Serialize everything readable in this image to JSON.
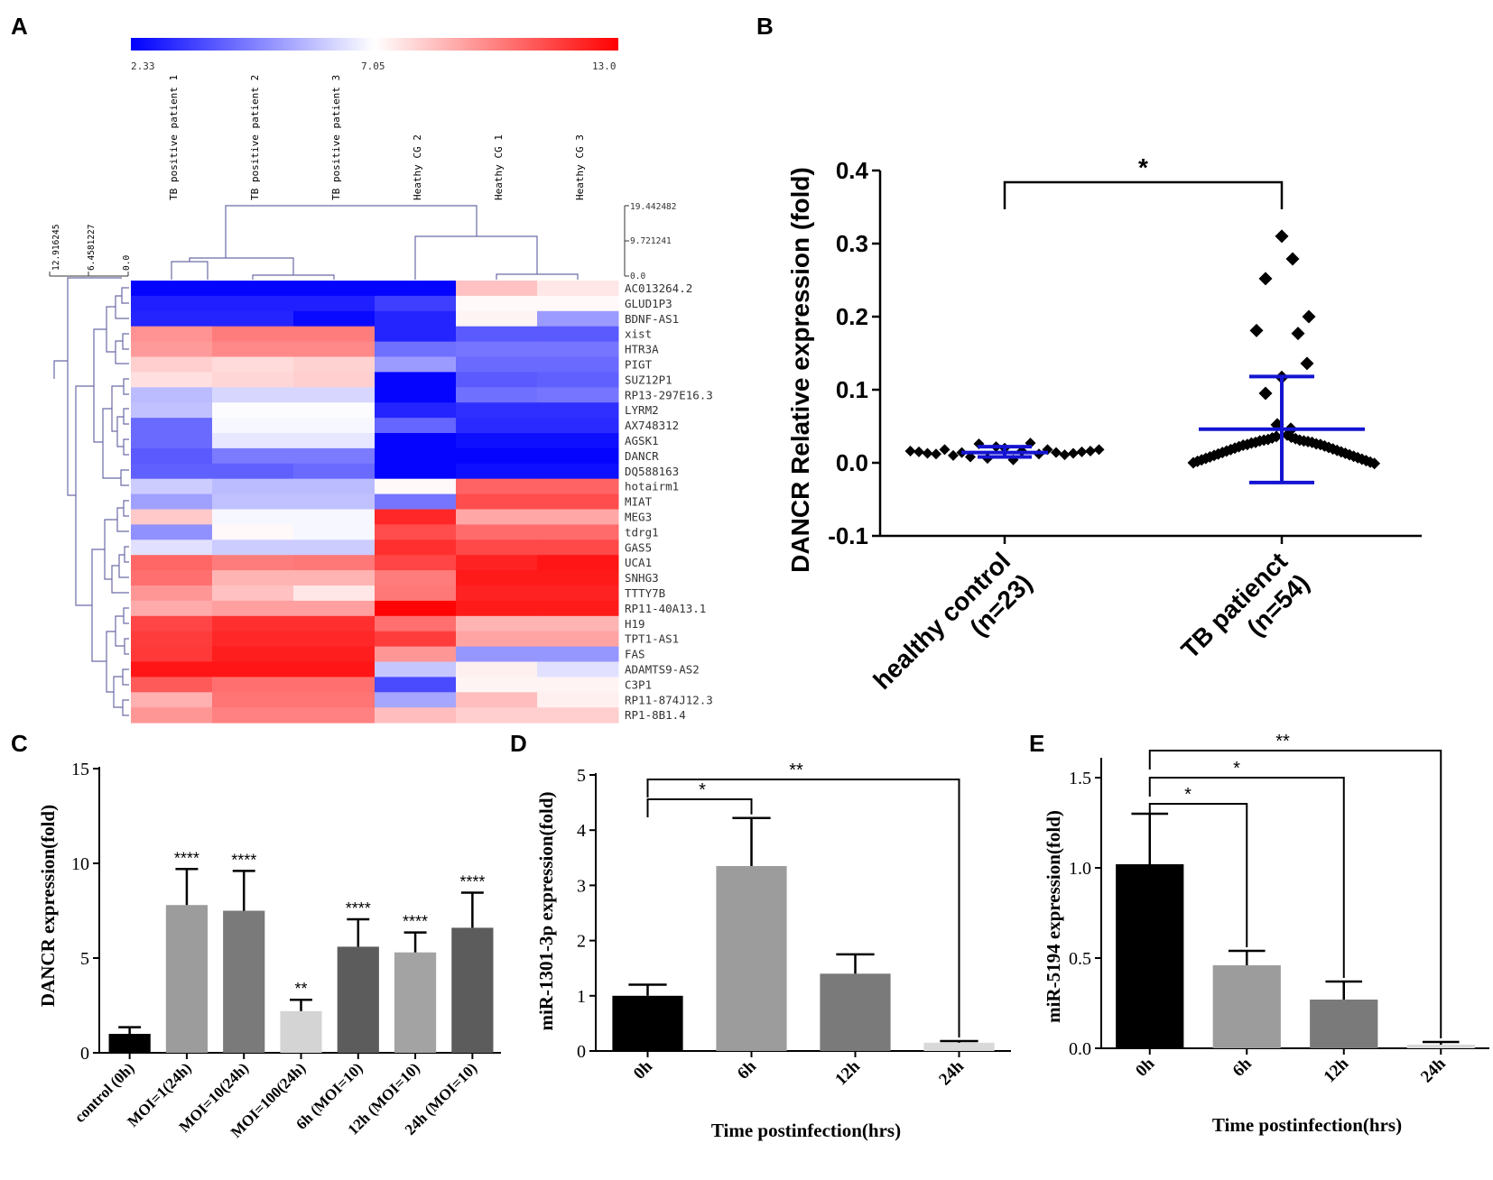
{
  "panel_letters": [
    "A",
    "B",
    "C",
    "D",
    "E"
  ],
  "chart_data": [
    {
      "panel": "A",
      "type": "heatmap",
      "colorbar": {
        "min_label": "2.33",
        "mid_label": "7.05",
        "max_label": "13.0",
        "min": 2.33,
        "mid": 7.05,
        "max": 13.0,
        "low_color": "#0000ff",
        "mid_color": "#ffffff",
        "high_color": "#ff0000"
      },
      "columns": [
        "TB positive patient 1",
        "TB positive patient 2",
        "TB positive patient 3",
        "Heathy CG 2",
        "Heathy CG 1",
        "Heathy CG 3"
      ],
      "col_dendro_ticks": [
        "19.442482",
        "9.721241",
        "0.0"
      ],
      "row_dendro_ticks": [
        "12.916245",
        "6.4581227",
        "0.0"
      ],
      "rows": [
        "AC013264.2",
        "GLUD1P3",
        "BDNF-AS1",
        "xist",
        "HTR3A",
        "PIGT",
        "SUZ12P1",
        "RP13-297E16.3",
        "LYRM2",
        "AX748312",
        "AGSK1",
        "DANCR",
        "DQ588163",
        "hotairm1",
        "MIAT",
        "MEG3",
        "tdrg1",
        "GAS5",
        "UCA1",
        "SNHG3",
        "TTTY7B",
        "RP11-40A13.1",
        "H19",
        "TPT1-AS1",
        "FAS",
        "ADAMTS9-AS2",
        "C3P1",
        "RP11-874J12.3",
        "RP1-8B1.4"
      ],
      "values": [
        [
          2.4,
          2.4,
          2.4,
          2.4,
          8.5,
          7.6
        ],
        [
          2.9,
          2.9,
          2.9,
          3.5,
          7.2,
          7.2
        ],
        [
          3.0,
          3.0,
          2.5,
          3.0,
          7.3,
          5.2
        ],
        [
          9.6,
          10.1,
          10.1,
          3.0,
          4.0,
          4.0
        ],
        [
          9.4,
          9.8,
          9.8,
          4.4,
          4.5,
          4.5
        ],
        [
          8.2,
          7.9,
          8.1,
          5.2,
          4.3,
          4.3
        ],
        [
          7.8,
          8.0,
          8.2,
          2.4,
          4.0,
          4.1
        ],
        [
          5.8,
          6.3,
          6.3,
          2.4,
          4.4,
          4.5
        ],
        [
          5.9,
          7.0,
          7.0,
          3.0,
          3.2,
          3.2
        ],
        [
          4.3,
          6.9,
          6.9,
          4.2,
          3.1,
          3.1
        ],
        [
          4.3,
          6.6,
          6.6,
          2.4,
          2.6,
          2.6
        ],
        [
          4.0,
          4.6,
          4.6,
          2.4,
          2.4,
          2.4
        ],
        [
          4.1,
          4.1,
          4.3,
          2.4,
          2.6,
          2.6
        ],
        [
          6.1,
          5.8,
          5.8,
          7.2,
          10.7,
          10.7
        ],
        [
          5.3,
          5.9,
          5.9,
          4.5,
          11.2,
          11.2
        ],
        [
          8.3,
          6.9,
          6.9,
          12.1,
          9.1,
          9.1
        ],
        [
          5.0,
          7.2,
          6.9,
          11.2,
          10.5,
          10.5
        ],
        [
          6.5,
          6.1,
          6.1,
          11.9,
          11.3,
          11.3
        ],
        [
          10.6,
          10.1,
          10.2,
          11.4,
          12.2,
          12.5
        ],
        [
          10.4,
          8.8,
          8.8,
          10.1,
          12.4,
          12.4
        ],
        [
          9.5,
          8.5,
          7.6,
          10.2,
          12.2,
          12.2
        ],
        [
          9.0,
          9.3,
          9.3,
          12.9,
          12.4,
          12.4
        ],
        [
          11.4,
          11.9,
          11.9,
          10.4,
          8.8,
          8.8
        ],
        [
          11.6,
          12.1,
          12.1,
          11.6,
          9.2,
          9.2
        ],
        [
          11.7,
          12.3,
          12.3,
          9.5,
          5.1,
          5.1
        ],
        [
          12.5,
          12.5,
          12.5,
          6.0,
          7.4,
          6.5
        ],
        [
          10.9,
          10.4,
          10.4,
          3.7,
          7.3,
          7.3
        ],
        [
          8.9,
          10.3,
          10.3,
          5.4,
          8.6,
          7.4
        ],
        [
          9.5,
          10.0,
          10.0,
          8.6,
          8.2,
          8.2
        ]
      ]
    },
    {
      "panel": "B",
      "type": "scatter",
      "ylabel": "DANCR Relative expression (fold)",
      "ylim": [
        -0.1,
        0.4
      ],
      "yticks": [
        "-0.1",
        "0.0",
        "0.1",
        "0.2",
        "0.3",
        "0.4"
      ],
      "categories": [
        "healthy control\n(n=23)",
        "TB patienct\n(n=54)"
      ],
      "groups": [
        {
          "name": "healthy control (n=23)",
          "mean": 0.014,
          "sd_low": 0.008,
          "sd_high": 0.022,
          "values": [
            0.016,
            0.015,
            0.013,
            0.012,
            0.018,
            0.01,
            0.014,
            0.008,
            0.026,
            0.006,
            0.022,
            0.02,
            0.004,
            0.016,
            0.027,
            0.012,
            0.018,
            0.014,
            0.011,
            0.013,
            0.015,
            0.016,
            0.018
          ]
        },
        {
          "name": "TB patienct (n=54)",
          "mean": 0.046,
          "sd_low": -0.027,
          "sd_high": 0.118,
          "values": [
            0.31,
            0.279,
            0.252,
            0.2,
            0.181,
            0.177,
            0.136,
            0.117,
            0.095,
            0.052,
            0.046,
            0.038,
            0.036,
            0.035,
            0.034,
            0.033,
            0.032,
            0.031,
            0.031,
            0.03,
            0.03,
            0.029,
            0.028,
            0.028,
            0.027,
            0.026,
            0.025,
            0.025,
            0.024,
            0.023,
            0.022,
            0.021,
            0.02,
            0.019,
            0.018,
            0.017,
            0.016,
            0.015,
            0.014,
            0.013,
            0.012,
            0.011,
            0.01,
            0.009,
            0.008,
            0.007,
            0.006,
            0.005,
            0.004,
            0.003,
            0.002,
            0.001,
            0.0,
            -0.001
          ]
        }
      ],
      "significance": {
        "label": "*",
        "from": 0,
        "to": 1
      }
    },
    {
      "panel": "C",
      "type": "bar",
      "ylabel": "DANCR expression(fold)",
      "ylim": [
        0,
        15
      ],
      "yticks": [
        "0",
        "5",
        "10",
        "15"
      ],
      "categories": [
        "control (0h)",
        "MOI=1(24h)",
        "MOI=10(24h)",
        "MOI=100(24h)",
        "6h (MOI=10)",
        "12h (MOI=10)",
        "24h (MOI=10)"
      ],
      "values": [
        1.0,
        7.8,
        7.5,
        2.2,
        5.6,
        5.3,
        6.6
      ],
      "errors": [
        0.35,
        1.9,
        2.1,
        0.6,
        1.45,
        1.05,
        1.85
      ],
      "annotations": [
        "",
        "****",
        "****",
        "**",
        "****",
        "****",
        "****"
      ],
      "colors": [
        "#000000",
        "#9c9c9c",
        "#7a7a7a",
        "#d4d4d4",
        "#5c5c5c",
        "#a3a3a3",
        "#5c5c5c"
      ]
    },
    {
      "panel": "D",
      "type": "bar",
      "ylabel": "miR-1301-3p expression(fold)",
      "xlabel": "Time postinfection(hrs)",
      "ylim": [
        0,
        5
      ],
      "yticks": [
        "0",
        "1",
        "2",
        "3",
        "4",
        "5"
      ],
      "categories": [
        "0h",
        "6h",
        "12h",
        "24h"
      ],
      "values": [
        1.0,
        3.35,
        1.4,
        0.15
      ],
      "errors": [
        0.2,
        0.87,
        0.35,
        0.03
      ],
      "colors": [
        "#000000",
        "#9c9c9c",
        "#7a7a7a",
        "#d9d9d9"
      ],
      "brackets": [
        {
          "from": 0,
          "to": 1,
          "label": "*"
        },
        {
          "from": 0,
          "to": 3,
          "label": "**"
        }
      ]
    },
    {
      "panel": "E",
      "type": "bar",
      "ylabel": "miR-5194 expression(fold)",
      "xlabel": "Time postinfection(hrs)",
      "ylim": [
        0,
        1.6
      ],
      "yticks": [
        "0.0",
        "0.5",
        "1.0",
        "1.5"
      ],
      "categories": [
        "0h",
        "6h",
        "12h",
        "24h"
      ],
      "values": [
        1.02,
        0.46,
        0.27,
        0.02
      ],
      "errors": [
        0.28,
        0.08,
        0.1,
        0.015
      ],
      "colors": [
        "#000000",
        "#9c9c9c",
        "#7a7a7a",
        "#d9d9d9"
      ],
      "brackets": [
        {
          "from": 0,
          "to": 1,
          "label": "*"
        },
        {
          "from": 0,
          "to": 2,
          "label": "*"
        },
        {
          "from": 0,
          "to": 3,
          "label": "**"
        }
      ]
    }
  ]
}
